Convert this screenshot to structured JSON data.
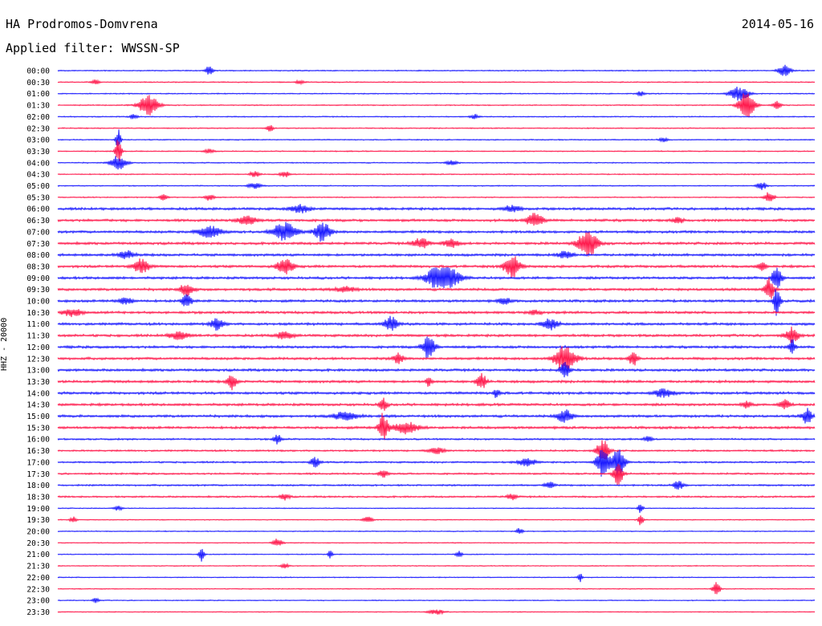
{
  "header": {
    "station": "HA Prodromos-Domvrena",
    "date": "2014-05-16",
    "filter_label": "Applied filter: WWSSN-SP"
  },
  "channel_label": "HHZ - 20000",
  "colors": {
    "trace_a": "#1a1aff",
    "trace_b": "#ff1a4d",
    "text": "#000000"
  },
  "chart_data": {
    "type": "line",
    "title": "",
    "xlabel": "",
    "ylabel": "HHZ - 20000",
    "grid": false,
    "row_interval_minutes": 30,
    "rows": [
      {
        "label": "00:00",
        "events": [
          [
            0.2,
            6,
            0.5
          ],
          [
            0.96,
            7,
            0.8
          ]
        ]
      },
      {
        "label": "00:30",
        "events": [
          [
            0.05,
            3,
            0.5
          ],
          [
            0.32,
            3,
            0.5
          ]
        ]
      },
      {
        "label": "01:00",
        "events": [
          [
            0.9,
            9,
            1.2
          ],
          [
            0.77,
            3,
            0.5
          ]
        ]
      },
      {
        "label": "01:30",
        "events": [
          [
            0.12,
            14,
            1.2
          ],
          [
            0.91,
            18,
            1.0
          ],
          [
            0.95,
            5,
            0.5
          ]
        ]
      },
      {
        "label": "02:00",
        "events": [
          [
            0.1,
            3,
            0.5
          ],
          [
            0.55,
            3,
            0.5
          ]
        ]
      },
      {
        "label": "02:30",
        "events": [
          [
            0.28,
            5,
            0.4
          ]
        ]
      },
      {
        "label": "03:00",
        "events": [
          [
            0.08,
            14,
            0.3
          ],
          [
            0.8,
            3,
            0.5
          ]
        ]
      },
      {
        "label": "03:30",
        "events": [
          [
            0.08,
            16,
            0.4
          ],
          [
            0.2,
            3,
            0.6
          ]
        ]
      },
      {
        "label": "04:00",
        "events": [
          [
            0.08,
            9,
            1.0
          ],
          [
            0.52,
            3,
            0.8
          ]
        ]
      },
      {
        "label": "04:30",
        "events": [
          [
            0.26,
            4,
            0.6
          ],
          [
            0.3,
            4,
            0.6
          ]
        ]
      },
      {
        "label": "05:00",
        "events": [
          [
            0.26,
            4,
            0.8
          ],
          [
            0.93,
            5,
            0.6
          ]
        ]
      },
      {
        "label": "05:30",
        "events": [
          [
            0.14,
            4,
            0.5
          ],
          [
            0.2,
            4,
            0.6
          ],
          [
            0.94,
            7,
            0.6
          ]
        ]
      },
      {
        "label": "06:00",
        "events": [
          [
            0.32,
            5,
            1.2
          ],
          [
            0.6,
            4,
            1.0
          ]
        ]
      },
      {
        "label": "06:30",
        "events": [
          [
            0.25,
            6,
            1.2
          ],
          [
            0.63,
            9,
            1.0
          ],
          [
            0.82,
            4,
            0.6
          ]
        ]
      },
      {
        "label": "07:00",
        "events": [
          [
            0.2,
            7,
            1.5
          ],
          [
            0.3,
            12,
            1.5
          ],
          [
            0.35,
            12,
            1.0
          ]
        ]
      },
      {
        "label": "07:30",
        "events": [
          [
            0.48,
            7,
            1.0
          ],
          [
            0.7,
            18,
            1.2
          ],
          [
            0.52,
            5,
            1.0
          ]
        ]
      },
      {
        "label": "08:00",
        "events": [
          [
            0.09,
            5,
            1.0
          ],
          [
            0.67,
            4,
            1.0
          ]
        ]
      },
      {
        "label": "08:30",
        "events": [
          [
            0.11,
            9,
            1.0
          ],
          [
            0.3,
            10,
            1.0
          ],
          [
            0.6,
            14,
            1.0
          ],
          [
            0.93,
            6,
            0.5
          ]
        ]
      },
      {
        "label": "09:00",
        "events": [
          [
            0.5,
            12,
            1.4
          ],
          [
            0.52,
            10,
            1.4
          ],
          [
            0.95,
            14,
            0.6
          ]
        ]
      },
      {
        "label": "09:30",
        "events": [
          [
            0.17,
            8,
            0.8
          ],
          [
            0.94,
            14,
            0.6
          ],
          [
            0.38,
            4,
            1.2
          ]
        ]
      },
      {
        "label": "10:00",
        "events": [
          [
            0.09,
            4,
            1.0
          ],
          [
            0.17,
            9,
            0.6
          ],
          [
            0.59,
            4,
            0.8
          ],
          [
            0.95,
            20,
            0.4
          ]
        ]
      },
      {
        "label": "10:30",
        "events": [
          [
            0.02,
            5,
            1.2
          ],
          [
            0.63,
            3,
            0.8
          ]
        ]
      },
      {
        "label": "11:00",
        "events": [
          [
            0.21,
            7,
            0.8
          ],
          [
            0.44,
            10,
            0.8
          ],
          [
            0.65,
            7,
            1.0
          ]
        ]
      },
      {
        "label": "11:30",
        "events": [
          [
            0.16,
            5,
            1.2
          ],
          [
            0.3,
            5,
            1.0
          ],
          [
            0.97,
            10,
            0.8
          ]
        ]
      },
      {
        "label": "12:00",
        "events": [
          [
            0.49,
            14,
            0.8
          ],
          [
            0.97,
            10,
            0.4
          ]
        ]
      },
      {
        "label": "12:30",
        "events": [
          [
            0.45,
            7,
            0.6
          ],
          [
            0.67,
            16,
            1.4
          ],
          [
            0.76,
            9,
            0.6
          ]
        ]
      },
      {
        "label": "13:00",
        "events": [
          [
            0.67,
            10,
            0.6
          ]
        ]
      },
      {
        "label": "13:30",
        "events": [
          [
            0.23,
            10,
            0.6
          ],
          [
            0.56,
            10,
            0.6
          ],
          [
            0.49,
            6,
            0.4
          ]
        ]
      },
      {
        "label": "14:00",
        "events": [
          [
            0.8,
            5,
            1.2
          ],
          [
            0.58,
            6,
            0.4
          ]
        ]
      },
      {
        "label": "14:30",
        "events": [
          [
            0.43,
            8,
            0.5
          ],
          [
            0.96,
            7,
            0.6
          ],
          [
            0.91,
            4,
            0.6
          ]
        ]
      },
      {
        "label": "15:00",
        "events": [
          [
            0.38,
            5,
            1.5
          ],
          [
            0.67,
            8,
            1.0
          ],
          [
            0.99,
            10,
            0.6
          ]
        ]
      },
      {
        "label": "15:30",
        "events": [
          [
            0.43,
            18,
            0.6
          ],
          [
            0.46,
            7,
            1.6
          ]
        ]
      },
      {
        "label": "16:00",
        "events": [
          [
            0.29,
            6,
            0.5
          ],
          [
            0.78,
            4,
            0.5
          ]
        ]
      },
      {
        "label": "16:30",
        "events": [
          [
            0.5,
            4,
            1.0
          ],
          [
            0.72,
            14,
            0.8
          ]
        ]
      },
      {
        "label": "17:00",
        "events": [
          [
            0.34,
            6,
            0.6
          ],
          [
            0.62,
            6,
            1.0
          ],
          [
            0.72,
            20,
            0.8
          ],
          [
            0.74,
            20,
            0.8
          ]
        ]
      },
      {
        "label": "17:30",
        "events": [
          [
            0.43,
            5,
            0.6
          ],
          [
            0.74,
            16,
            0.6
          ]
        ]
      },
      {
        "label": "18:00",
        "events": [
          [
            0.82,
            6,
            0.6
          ],
          [
            0.65,
            4,
            0.6
          ]
        ]
      },
      {
        "label": "18:30",
        "events": [
          [
            0.3,
            4,
            0.6
          ],
          [
            0.6,
            4,
            0.6
          ]
        ]
      },
      {
        "label": "19:00",
        "events": [
          [
            0.77,
            8,
            0.3
          ],
          [
            0.08,
            3,
            0.5
          ]
        ]
      },
      {
        "label": "19:30",
        "events": [
          [
            0.77,
            9,
            0.3
          ],
          [
            0.41,
            4,
            0.6
          ],
          [
            0.02,
            4,
            0.4
          ]
        ]
      },
      {
        "label": "20:00",
        "events": [
          [
            0.61,
            4,
            0.4
          ]
        ]
      },
      {
        "label": "20:30",
        "events": [
          [
            0.29,
            5,
            0.6
          ]
        ]
      },
      {
        "label": "21:00",
        "events": [
          [
            0.19,
            10,
            0.3
          ],
          [
            0.36,
            5,
            0.3
          ],
          [
            0.53,
            4,
            0.4
          ]
        ]
      },
      {
        "label": "21:30",
        "events": [
          [
            0.3,
            3,
            0.5
          ]
        ]
      },
      {
        "label": "22:00",
        "events": [
          [
            0.69,
            6,
            0.3
          ]
        ]
      },
      {
        "label": "22:30",
        "events": [
          [
            0.87,
            8,
            0.5
          ]
        ]
      },
      {
        "label": "23:00",
        "events": [
          [
            0.05,
            3,
            0.4
          ]
        ]
      },
      {
        "label": "23:30",
        "events": [
          [
            0.5,
            3,
            1.0
          ]
        ]
      }
    ]
  }
}
